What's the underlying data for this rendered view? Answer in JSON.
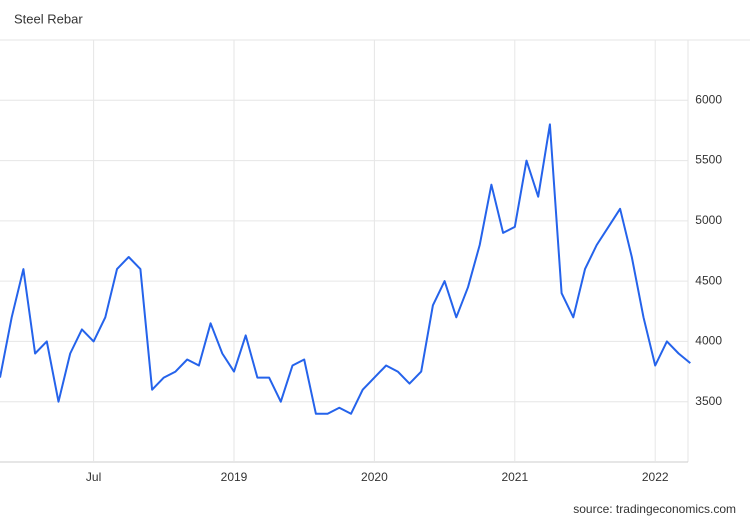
{
  "chart_data": {
    "type": "line",
    "title": "Steel Rebar",
    "source": "source: tradingeconomics.com",
    "categories": [
      null,
      null,
      null,
      null,
      null,
      null,
      null,
      null,
      "Jul",
      null,
      null,
      null,
      null,
      null,
      null,
      null,
      null,
      null,
      null,
      null,
      "2019",
      null,
      null,
      null,
      null,
      null,
      null,
      null,
      null,
      null,
      null,
      null,
      "2020",
      null,
      null,
      null,
      null,
      null,
      null,
      null,
      null,
      null,
      null,
      null,
      "2021",
      null,
      null,
      null,
      null,
      null,
      null,
      null,
      null,
      null,
      null,
      null,
      "2022",
      null,
      null,
      null
    ],
    "values": [
      3700,
      4200,
      4600,
      3900,
      4000,
      3500,
      3900,
      4100,
      4000,
      4200,
      4600,
      4700,
      4600,
      3600,
      3700,
      3750,
      3850,
      3800,
      4150,
      3900,
      3750,
      4050,
      3700,
      3700,
      3500,
      3800,
      3850,
      3400,
      3400,
      3450,
      3400,
      3600,
      3700,
      3800,
      3750,
      3650,
      3750,
      4300,
      4500,
      4200,
      4450,
      4800,
      5300,
      4900,
      4950,
      5500,
      5200,
      5800,
      4400,
      4200,
      4600,
      4800,
      4950,
      5100,
      4700,
      4200,
      3800,
      4000,
      3900,
      3820
    ],
    "color": "#2563eb",
    "ylim": [
      3000,
      6500
    ],
    "yticks": [
      3500,
      4000,
      4500,
      5000,
      5500,
      6000
    ],
    "grid": true
  }
}
